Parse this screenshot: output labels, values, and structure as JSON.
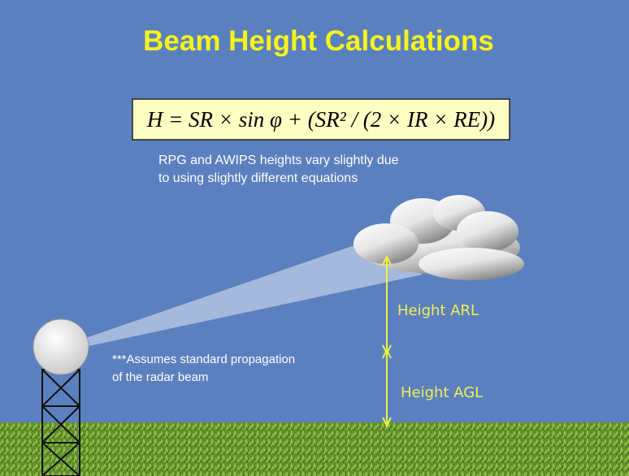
{
  "title": "Beam Height Calculations",
  "equation": "H = SR × sin φ + (SR² / (2 × IR × RE))",
  "note": [
    "RPG and AWIPS heights vary slightly due",
    "to using slightly different equations"
  ],
  "assumption": [
    "***Assumes standard propagation",
    "of the radar beam"
  ],
  "labels": {
    "arl": "Height ARL",
    "agl": "Height AGL"
  }
}
